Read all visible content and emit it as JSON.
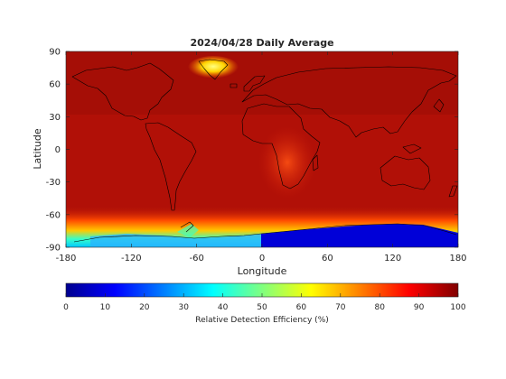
{
  "chart_data": {
    "type": "heatmap",
    "title": "2024/04/28 Daily Average",
    "xlabel": "Longitude",
    "ylabel": "Latitude",
    "xlim": [
      -180,
      180
    ],
    "ylim": [
      -90,
      90
    ],
    "xticks": [
      -180,
      -120,
      -60,
      0,
      60,
      120,
      180
    ],
    "yticks": [
      90,
      60,
      30,
      0,
      -30,
      -60,
      -90
    ],
    "grid": false,
    "colormap": "jet",
    "colorbar": {
      "label": "Relative Detection Efficiency (%)",
      "range": [
        0,
        100
      ],
      "ticks": [
        0,
        10,
        20,
        30,
        40,
        50,
        60,
        70,
        80,
        90,
        100
      ],
      "orientation": "horizontal",
      "position": "bottom"
    },
    "regions": [
      {
        "name": "Background",
        "value": 88
      },
      {
        "name": "Southern Africa",
        "value": 80
      },
      {
        "name": "Greenland",
        "value": 60
      },
      {
        "name": "Southern Ocean band",
        "value": 30
      },
      {
        "name": "East Antarctica",
        "value": 5
      },
      {
        "name": "West Antarctica",
        "value": 35
      }
    ],
    "colors": {
      "background": "#b11007",
      "high": "#8b0000",
      "jet_stops": [
        "#00008f",
        "#0000ff",
        "#00ffff",
        "#ffff00",
        "#ff0000",
        "#800000"
      ]
    }
  }
}
